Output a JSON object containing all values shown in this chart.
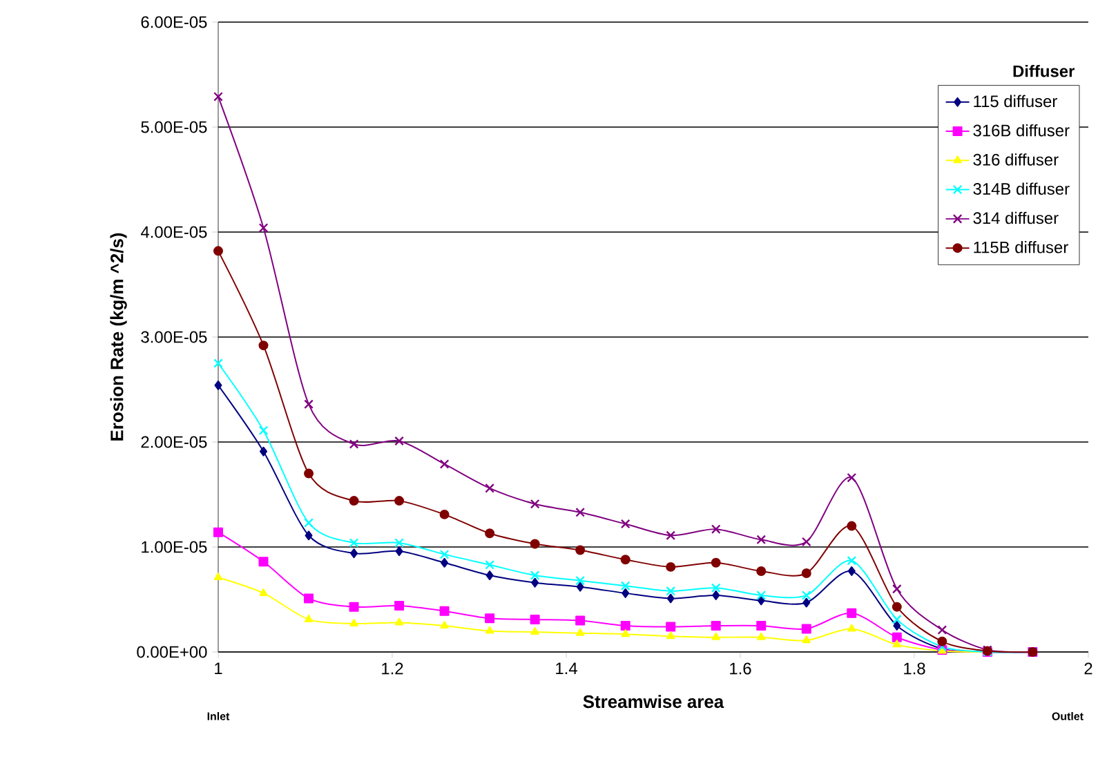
{
  "chart_data": {
    "type": "line",
    "xlabel": "Streamwise area",
    "ylabel": "Erosion Rate (kg/m ^2/s)",
    "legend_title": "Diffuser",
    "x": [
      1,
      1.052,
      1.104,
      1.156,
      1.208,
      1.26,
      1.312,
      1.364,
      1.416,
      1.468,
      1.52,
      1.572,
      1.624,
      1.676,
      1.728,
      1.78,
      1.832,
      1.884,
      1.936
    ],
    "series": [
      {
        "name": "115 diffuser",
        "color": "#000080",
        "marker": "diamond",
        "values": [
          2.54e-05,
          1.91e-05,
          1.11e-05,
          9.4e-06,
          9.6e-06,
          8.5e-06,
          7.3e-06,
          6.6e-06,
          6.2e-06,
          5.6e-06,
          5.1e-06,
          5.4e-06,
          4.9e-06,
          4.7e-06,
          7.7e-06,
          2.5e-06,
          3e-07,
          0,
          0
        ]
      },
      {
        "name": "316B diffuser",
        "color": "#ff00ff",
        "marker": "square",
        "values": [
          1.14e-05,
          8.6e-06,
          5.1e-06,
          4.3e-06,
          4.4e-06,
          3.9e-06,
          3.2e-06,
          3.1e-06,
          3e-06,
          2.5e-06,
          2.4e-06,
          2.5e-06,
          2.5e-06,
          2.2e-06,
          3.7e-06,
          1.4e-06,
          2e-07,
          0,
          0
        ]
      },
      {
        "name": "316 diffuser",
        "color": "#ffff00",
        "marker": "triangle",
        "values": [
          7.1e-06,
          5.6e-06,
          3.1e-06,
          2.7e-06,
          2.8e-06,
          2.5e-06,
          2e-06,
          1.9e-06,
          1.8e-06,
          1.7e-06,
          1.5e-06,
          1.4e-06,
          1.4e-06,
          1.1e-06,
          2.2e-06,
          7e-07,
          1e-07,
          0,
          0
        ]
      },
      {
        "name": "314B diffuser",
        "color": "#00ffff",
        "marker": "cross",
        "values": [
          2.75e-05,
          2.11e-05,
          1.23e-05,
          1.04e-05,
          1.04e-05,
          9.3e-06,
          8.3e-06,
          7.3e-06,
          6.8e-06,
          6.3e-06,
          5.8e-06,
          6.1e-06,
          5.4e-06,
          5.4e-06,
          8.7e-06,
          3.1e-06,
          5e-07,
          0,
          0
        ]
      },
      {
        "name": "314 diffuser",
        "color": "#800080",
        "marker": "cross",
        "values": [
          5.29e-05,
          4.04e-05,
          2.36e-05,
          1.98e-05,
          2.01e-05,
          1.79e-05,
          1.56e-05,
          1.41e-05,
          1.33e-05,
          1.22e-05,
          1.11e-05,
          1.17e-05,
          1.07e-05,
          1.05e-05,
          1.66e-05,
          6e-06,
          2.1e-06,
          2e-07,
          0
        ]
      },
      {
        "name": "115B diffuser",
        "color": "#800000",
        "marker": "circle",
        "values": [
          3.82e-05,
          2.92e-05,
          1.7e-05,
          1.44e-05,
          1.44e-05,
          1.31e-05,
          1.13e-05,
          1.03e-05,
          9.7e-06,
          8.8e-06,
          8.1e-06,
          8.5e-06,
          7.7e-06,
          7.5e-06,
          1.2e-05,
          4.3e-06,
          1e-06,
          1e-07,
          0
        ]
      }
    ],
    "xlim": [
      1,
      2
    ],
    "xticks": [
      1,
      1.2,
      1.4,
      1.6,
      1.8,
      2
    ],
    "ylim": [
      0,
      6e-05
    ],
    "yticks": [
      {
        "value": 0,
        "label": "0.00E+00"
      },
      {
        "value": 1e-05,
        "label": "1.00E-05"
      },
      {
        "value": 2e-05,
        "label": "2.00E-05"
      },
      {
        "value": 3e-05,
        "label": "3.00E-05"
      },
      {
        "value": 4e-05,
        "label": "4.00E-05"
      },
      {
        "value": 5e-05,
        "label": "5.00E-05"
      },
      {
        "value": 6e-05,
        "label": "6.00E-05"
      }
    ],
    "grid": "y",
    "legend": "top right",
    "line_style": "solid",
    "annotations": [
      "Inlet",
      "Outlet"
    ]
  }
}
